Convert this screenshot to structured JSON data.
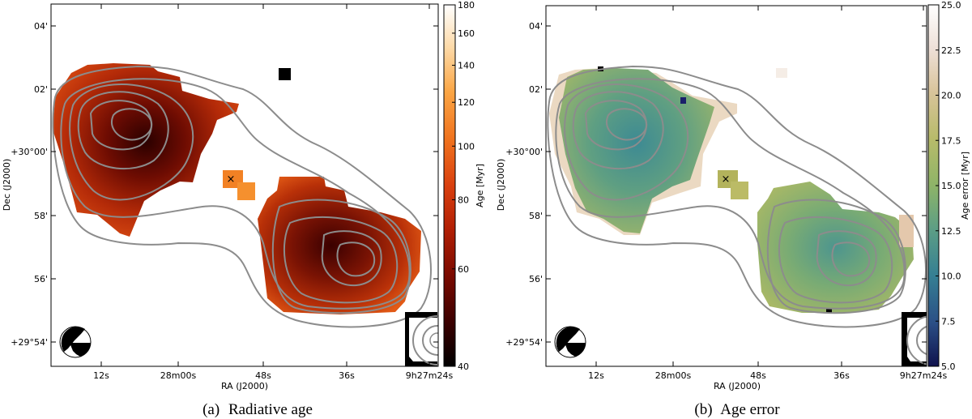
{
  "figure": {
    "panels": [
      {
        "id": "a",
        "caption_label": "(a)",
        "caption_text": "Radiative age",
        "colorbar": {
          "label": "Age [Myr]",
          "scale": "log",
          "min": 40,
          "max": 180,
          "ticks": [
            "180",
            "160",
            "140",
            "120",
            "100",
            "80",
            "60",
            "40"
          ],
          "tick_values": [
            180,
            160,
            140,
            120,
            100,
            80,
            60,
            40
          ],
          "colormap": [
            "#000000",
            "#3a0000",
            "#7a0a00",
            "#b21f04",
            "#d9400f",
            "#f0731e",
            "#fba645",
            "#fdd9a6",
            "#ffffff"
          ]
        }
      },
      {
        "id": "b",
        "caption_label": "(b)",
        "caption_text": "Age error",
        "colorbar": {
          "label": "Age error [Myr]",
          "scale": "linear",
          "min": 5,
          "max": 25,
          "ticks": [
            "25.0",
            "22.5",
            "20.0",
            "17.5",
            "15.0",
            "12.5",
            "10.0",
            "7.5",
            "5.0"
          ],
          "tick_values": [
            25,
            22.5,
            20,
            17.5,
            15,
            12.5,
            10,
            7.5,
            5
          ],
          "colormap": [
            "#10124d",
            "#2b4f86",
            "#357f93",
            "#5d9e85",
            "#8eb468",
            "#b8bb6a",
            "#d9c49b",
            "#eee0d8",
            "#ffffff"
          ]
        }
      }
    ],
    "axes": {
      "xlabel": "RA (J2000)",
      "ylabel": "Dec (J2000)",
      "xticks": [
        "12s",
        "28m00s",
        "48s",
        "36s",
        "9h27m24s"
      ],
      "yticks": [
        "04'",
        "02'",
        "+30°00'",
        "58'",
        "56'",
        "+29°54'"
      ]
    },
    "markers": {
      "source_symbol": "×"
    },
    "colors": {
      "contour": "#8c8c8c",
      "frame": "#000000"
    }
  }
}
